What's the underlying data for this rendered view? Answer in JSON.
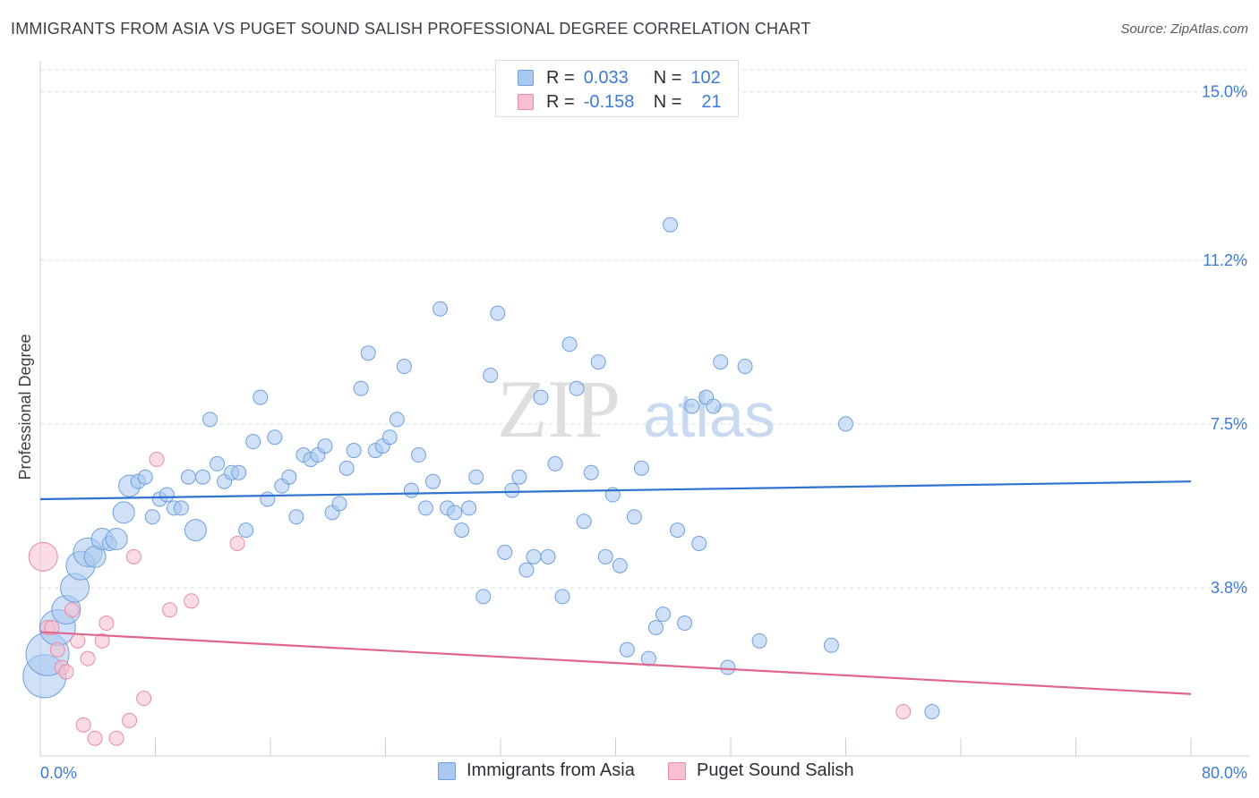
{
  "header": {
    "title": "IMMIGRANTS FROM ASIA VS PUGET SOUND SALISH PROFESSIONAL DEGREE CORRELATION CHART",
    "source": "Source: ZipAtlas.com"
  },
  "legend": {
    "rows": [
      {
        "r_label": "R =",
        "r_value": "0.033",
        "n_label": "N =",
        "n_value": "102"
      },
      {
        "r_label": "R =",
        "r_value": "-0.158",
        "n_label": "N =",
        "n_value": "21"
      }
    ]
  },
  "bottom_legend": {
    "asia": "Immigrants from Asia",
    "salish": "Puget Sound Salish"
  },
  "colors": {
    "asia_fill": "#a9c8f0",
    "asia_stroke": "#6f9fdc",
    "asia_line": "#2f72cf",
    "salish_fill": "#f7bfd0",
    "salish_stroke": "#e98aa8",
    "salish_line": "#e06590",
    "tick_text": "#3d7bd6",
    "grid": "#d8dce2"
  },
  "watermark": {
    "zip": "ZIP",
    "atlas": "atlas"
  },
  "chart_data": {
    "type": "scatter",
    "title": "IMMIGRANTS FROM ASIA VS PUGET SOUND SALISH PROFESSIONAL DEGREE CORRELATION CHART",
    "xlabel": "",
    "ylabel": "Professional Degree",
    "xlim": [
      0,
      80
    ],
    "ylim": [
      0,
      15.5
    ],
    "x_tick_labels": [
      "0.0%",
      "80.0%"
    ],
    "y_ticks": [
      3.8,
      7.5,
      11.2,
      15.0
    ],
    "y_tick_labels": [
      "3.8%",
      "7.5%",
      "11.2%",
      "15.0%"
    ],
    "grid": true,
    "legend_position": "top-center",
    "series": [
      {
        "name": "Immigrants from Asia",
        "R": 0.033,
        "N": 102,
        "trend": [
          [
            0,
            5.8
          ],
          [
            80,
            6.2
          ]
        ],
        "points": [
          [
            0.3,
            1.8,
            3
          ],
          [
            0.5,
            2.3,
            3
          ],
          [
            1.2,
            2.9,
            2.5
          ],
          [
            1.8,
            3.3,
            2
          ],
          [
            2.4,
            3.8,
            2
          ],
          [
            2.8,
            4.3,
            2
          ],
          [
            3.3,
            4.6,
            2
          ],
          [
            3.8,
            4.5,
            1.5
          ],
          [
            4.3,
            4.9,
            1.5
          ],
          [
            4.8,
            4.8,
            1
          ],
          [
            5.3,
            4.9,
            1.5
          ],
          [
            5.8,
            5.5,
            1.5
          ],
          [
            6.2,
            6.1,
            1.5
          ],
          [
            6.8,
            6.2,
            1
          ],
          [
            7.3,
            6.3,
            1
          ],
          [
            7.8,
            5.4,
            1
          ],
          [
            8.3,
            5.8,
            1
          ],
          [
            8.8,
            5.9,
            1
          ],
          [
            9.3,
            5.6,
            1
          ],
          [
            9.8,
            5.6,
            1
          ],
          [
            10.3,
            6.3,
            1
          ],
          [
            10.8,
            5.1,
            1.5
          ],
          [
            11.3,
            6.3,
            1
          ],
          [
            11.8,
            7.6,
            1
          ],
          [
            12.3,
            6.6,
            1
          ],
          [
            12.8,
            6.2,
            1
          ],
          [
            13.3,
            6.4,
            1
          ],
          [
            13.8,
            6.4,
            1
          ],
          [
            14.3,
            5.1,
            1
          ],
          [
            14.8,
            7.1,
            1
          ],
          [
            15.3,
            8.1,
            1
          ],
          [
            15.8,
            5.8,
            1
          ],
          [
            16.3,
            7.2,
            1
          ],
          [
            16.8,
            6.1,
            1
          ],
          [
            17.3,
            6.3,
            1
          ],
          [
            17.8,
            5.4,
            1
          ],
          [
            18.3,
            6.8,
            1
          ],
          [
            18.8,
            6.7,
            1
          ],
          [
            19.3,
            6.8,
            1
          ],
          [
            19.8,
            7.0,
            1
          ],
          [
            20.3,
            5.5,
            1
          ],
          [
            20.8,
            5.7,
            1
          ],
          [
            21.3,
            6.5,
            1
          ],
          [
            21.8,
            6.9,
            1
          ],
          [
            22.3,
            8.3,
            1
          ],
          [
            22.8,
            9.1,
            1
          ],
          [
            23.3,
            6.9,
            1
          ],
          [
            23.8,
            7.0,
            1
          ],
          [
            24.3,
            7.2,
            1
          ],
          [
            24.8,
            7.6,
            1
          ],
          [
            25.3,
            8.8,
            1
          ],
          [
            25.8,
            6.0,
            1
          ],
          [
            26.3,
            6.8,
            1
          ],
          [
            26.8,
            5.6,
            1
          ],
          [
            27.3,
            6.2,
            1
          ],
          [
            27.8,
            10.1,
            1
          ],
          [
            28.3,
            5.6,
            1
          ],
          [
            28.8,
            5.5,
            1
          ],
          [
            29.3,
            5.1,
            1
          ],
          [
            29.8,
            5.6,
            1
          ],
          [
            30.3,
            6.3,
            1
          ],
          [
            30.8,
            3.6,
            1
          ],
          [
            31.3,
            8.6,
            1
          ],
          [
            31.8,
            10.0,
            1
          ],
          [
            32.3,
            4.6,
            1
          ],
          [
            32.8,
            6.0,
            1
          ],
          [
            33.3,
            6.3,
            1
          ],
          [
            33.8,
            4.2,
            1
          ],
          [
            34.3,
            4.5,
            1
          ],
          [
            34.8,
            8.1,
            1
          ],
          [
            35.3,
            4.5,
            1
          ],
          [
            35.8,
            6.6,
            1
          ],
          [
            36.3,
            3.6,
            1
          ],
          [
            36.8,
            9.3,
            1
          ],
          [
            37.3,
            8.3,
            1
          ],
          [
            37.8,
            5.3,
            1
          ],
          [
            38.3,
            6.4,
            1
          ],
          [
            38.8,
            8.9,
            1
          ],
          [
            39.3,
            4.5,
            1
          ],
          [
            39.8,
            5.9,
            1
          ],
          [
            40.3,
            4.3,
            1
          ],
          [
            40.8,
            2.4,
            1
          ],
          [
            41.3,
            5.4,
            1
          ],
          [
            41.8,
            6.5,
            1
          ],
          [
            42.3,
            2.2,
            1
          ],
          [
            42.8,
            2.9,
            1
          ],
          [
            43.3,
            3.2,
            1
          ],
          [
            43.8,
            12.0,
            1
          ],
          [
            44.3,
            5.1,
            1
          ],
          [
            44.8,
            3.0,
            1
          ],
          [
            45.3,
            7.9,
            1
          ],
          [
            45.8,
            4.8,
            1
          ],
          [
            46.3,
            8.1,
            1
          ],
          [
            46.8,
            7.9,
            1
          ],
          [
            47.3,
            8.9,
            1
          ],
          [
            47.8,
            2.0,
            1
          ],
          [
            49.0,
            8.8,
            1
          ],
          [
            50.0,
            2.6,
            1
          ],
          [
            55.0,
            2.5,
            1
          ],
          [
            56.0,
            7.5,
            1
          ],
          [
            62.0,
            1.0,
            1
          ]
        ]
      },
      {
        "name": "Puget Sound Salish",
        "R": -0.158,
        "N": 21,
        "trend": [
          [
            0,
            2.8
          ],
          [
            80,
            1.4
          ]
        ],
        "points": [
          [
            0.2,
            4.5,
            2
          ],
          [
            0.5,
            2.9,
            1
          ],
          [
            0.8,
            2.9,
            1
          ],
          [
            1.2,
            2.4,
            1
          ],
          [
            1.5,
            2.0,
            1
          ],
          [
            1.8,
            1.9,
            1
          ],
          [
            2.2,
            3.3,
            1
          ],
          [
            2.6,
            2.6,
            1
          ],
          [
            3.0,
            0.7,
            1
          ],
          [
            3.3,
            2.2,
            1
          ],
          [
            3.8,
            0.4,
            1
          ],
          [
            4.3,
            2.6,
            1
          ],
          [
            4.6,
            3.0,
            1
          ],
          [
            5.3,
            0.4,
            1
          ],
          [
            6.2,
            0.8,
            1
          ],
          [
            6.5,
            4.5,
            1
          ],
          [
            7.2,
            1.3,
            1
          ],
          [
            8.1,
            6.7,
            1
          ],
          [
            9.0,
            3.3,
            1
          ],
          [
            10.5,
            3.5,
            1
          ],
          [
            13.7,
            4.8,
            1
          ],
          [
            60.0,
            1.0,
            1
          ]
        ]
      }
    ]
  }
}
